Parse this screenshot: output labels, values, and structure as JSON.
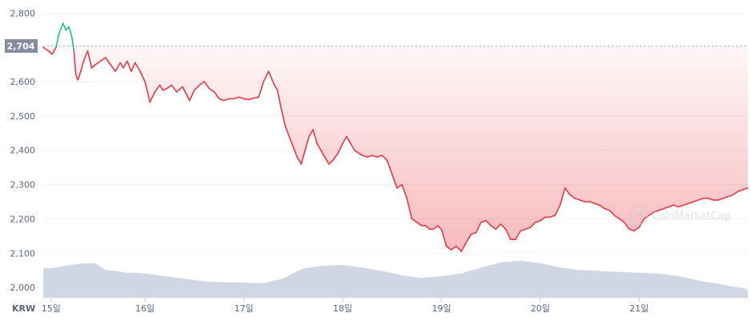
{
  "chart_data": {
    "type": "line",
    "currency": "KRW",
    "reference": {
      "value": 2704,
      "label": "2,704"
    },
    "watermark": "CoinMarketCap",
    "ylim": [
      1970,
      2810
    ],
    "y_ticks": [
      {
        "value": 2800,
        "label": "2,800"
      },
      {
        "value": 2600,
        "label": "2,600"
      },
      {
        "value": 2500,
        "label": "2,500"
      },
      {
        "value": 2400,
        "label": "2,400"
      },
      {
        "value": 2300,
        "label": "2,300"
      },
      {
        "value": 2200,
        "label": "2,200"
      },
      {
        "value": 2100,
        "label": "2,100"
      },
      {
        "value": 2000,
        "label": "2,000"
      }
    ],
    "x_ticks": [
      {
        "value": 0.05,
        "label": "15일"
      },
      {
        "value": 1.0,
        "label": "16일"
      },
      {
        "value": 2.0,
        "label": "17일"
      },
      {
        "value": 3.0,
        "label": "18일"
      },
      {
        "value": 4.0,
        "label": "19일"
      },
      {
        "value": 5.0,
        "label": "20일"
      },
      {
        "value": 6.0,
        "label": "21일"
      }
    ],
    "xlim": [
      -0.03,
      7.1
    ],
    "series": [
      {
        "name": "price",
        "x": [
          -0.03,
          0.02,
          0.06,
          0.1,
          0.13,
          0.17,
          0.2,
          0.23,
          0.26,
          0.28,
          0.3,
          0.32,
          0.35,
          0.38,
          0.42,
          0.46,
          0.5,
          0.55,
          0.6,
          0.65,
          0.7,
          0.75,
          0.78,
          0.82,
          0.86,
          0.9,
          0.95,
          1.0,
          1.05,
          1.1,
          1.15,
          1.18,
          1.22,
          1.27,
          1.32,
          1.38,
          1.45,
          1.5,
          1.55,
          1.6,
          1.65,
          1.7,
          1.75,
          1.8,
          1.85,
          1.9,
          1.95,
          2.0,
          2.05,
          2.1,
          2.15,
          2.2,
          2.25,
          2.28,
          2.31,
          2.34,
          2.38,
          2.42,
          2.46,
          2.5,
          2.54,
          2.58,
          2.62,
          2.66,
          2.7,
          2.74,
          2.78,
          2.82,
          2.86,
          2.9,
          2.95,
          3.0,
          3.04,
          3.08,
          3.12,
          3.17,
          3.2,
          3.25,
          3.3,
          3.35,
          3.4,
          3.45,
          3.5,
          3.55,
          3.6,
          3.65,
          3.7,
          3.75,
          3.8,
          3.84,
          3.88,
          3.92,
          3.96,
          4.0,
          4.05,
          4.1,
          4.15,
          4.2,
          4.25,
          4.3,
          4.35,
          4.4,
          4.45,
          4.5,
          4.55,
          4.6,
          4.65,
          4.7,
          4.75,
          4.8,
          4.85,
          4.9,
          4.95,
          5.0,
          5.05,
          5.1,
          5.15,
          5.2,
          5.25,
          5.3,
          5.35,
          5.4,
          5.45,
          5.5,
          5.55,
          5.6,
          5.65,
          5.7,
          5.75,
          5.8,
          5.85,
          5.9,
          5.95,
          6.0,
          6.05,
          6.1,
          6.15,
          6.2,
          6.25,
          6.3,
          6.35,
          6.4,
          6.45,
          6.5,
          6.55,
          6.6,
          6.65,
          6.7,
          6.75,
          6.8,
          6.85,
          6.9,
          6.95,
          7.0,
          7.05,
          7.1
        ],
        "y": [
          2700,
          2690,
          2680,
          2700,
          2740,
          2770,
          2750,
          2760,
          2730,
          2690,
          2620,
          2605,
          2630,
          2660,
          2690,
          2640,
          2650,
          2660,
          2670,
          2650,
          2630,
          2655,
          2640,
          2660,
          2630,
          2655,
          2630,
          2600,
          2540,
          2570,
          2590,
          2575,
          2580,
          2590,
          2570,
          2585,
          2545,
          2575,
          2590,
          2600,
          2580,
          2570,
          2550,
          2545,
          2550,
          2550,
          2555,
          2550,
          2548,
          2552,
          2555,
          2600,
          2630,
          2610,
          2590,
          2575,
          2520,
          2470,
          2440,
          2410,
          2380,
          2360,
          2400,
          2440,
          2460,
          2420,
          2400,
          2380,
          2360,
          2370,
          2390,
          2420,
          2440,
          2420,
          2400,
          2390,
          2385,
          2380,
          2385,
          2380,
          2385,
          2370,
          2330,
          2290,
          2300,
          2260,
          2200,
          2190,
          2180,
          2180,
          2170,
          2170,
          2180,
          2170,
          2120,
          2110,
          2120,
          2105,
          2130,
          2155,
          2160,
          2190,
          2195,
          2180,
          2170,
          2185,
          2170,
          2140,
          2140,
          2165,
          2170,
          2175,
          2190,
          2195,
          2205,
          2205,
          2210,
          2240,
          2290,
          2270,
          2260,
          2255,
          2250,
          2250,
          2245,
          2240,
          2230,
          2225,
          2210,
          2200,
          2190,
          2170,
          2165,
          2175,
          2200,
          2210,
          2220,
          2225,
          2230,
          2235,
          2240,
          2235,
          2240,
          2245,
          2250,
          2255,
          2260,
          2260,
          2255,
          2255,
          2260,
          2265,
          2270,
          2280,
          2285,
          2290
        ]
      },
      {
        "name": "volume",
        "x": [
          -0.03,
          0.1,
          0.2,
          0.3,
          0.4,
          0.5,
          0.6,
          0.7,
          0.8,
          0.9,
          1.0,
          1.2,
          1.4,
          1.6,
          1.8,
          2.0,
          2.2,
          2.4,
          2.6,
          2.8,
          3.0,
          3.2,
          3.4,
          3.6,
          3.8,
          4.0,
          4.2,
          4.4,
          4.6,
          4.8,
          5.0,
          5.2,
          5.4,
          5.6,
          5.8,
          6.0,
          6.2,
          6.4,
          6.6,
          6.8,
          7.0,
          7.1
        ],
        "y": [
          0.68,
          0.7,
          0.74,
          0.78,
          0.8,
          0.8,
          0.64,
          0.62,
          0.58,
          0.58,
          0.56,
          0.5,
          0.44,
          0.38,
          0.36,
          0.35,
          0.34,
          0.45,
          0.68,
          0.74,
          0.76,
          0.7,
          0.62,
          0.52,
          0.46,
          0.5,
          0.56,
          0.7,
          0.82,
          0.86,
          0.8,
          0.7,
          0.64,
          0.62,
          0.6,
          0.58,
          0.56,
          0.5,
          0.4,
          0.32,
          0.24,
          0.2
        ]
      }
    ]
  },
  "colors": {
    "up": "#16c784",
    "down": "#ea3943",
    "volume": "#cfd6e4",
    "grid": "#eff2f5",
    "axis": "#58667e",
    "ref_bg": "#858ca2"
  }
}
